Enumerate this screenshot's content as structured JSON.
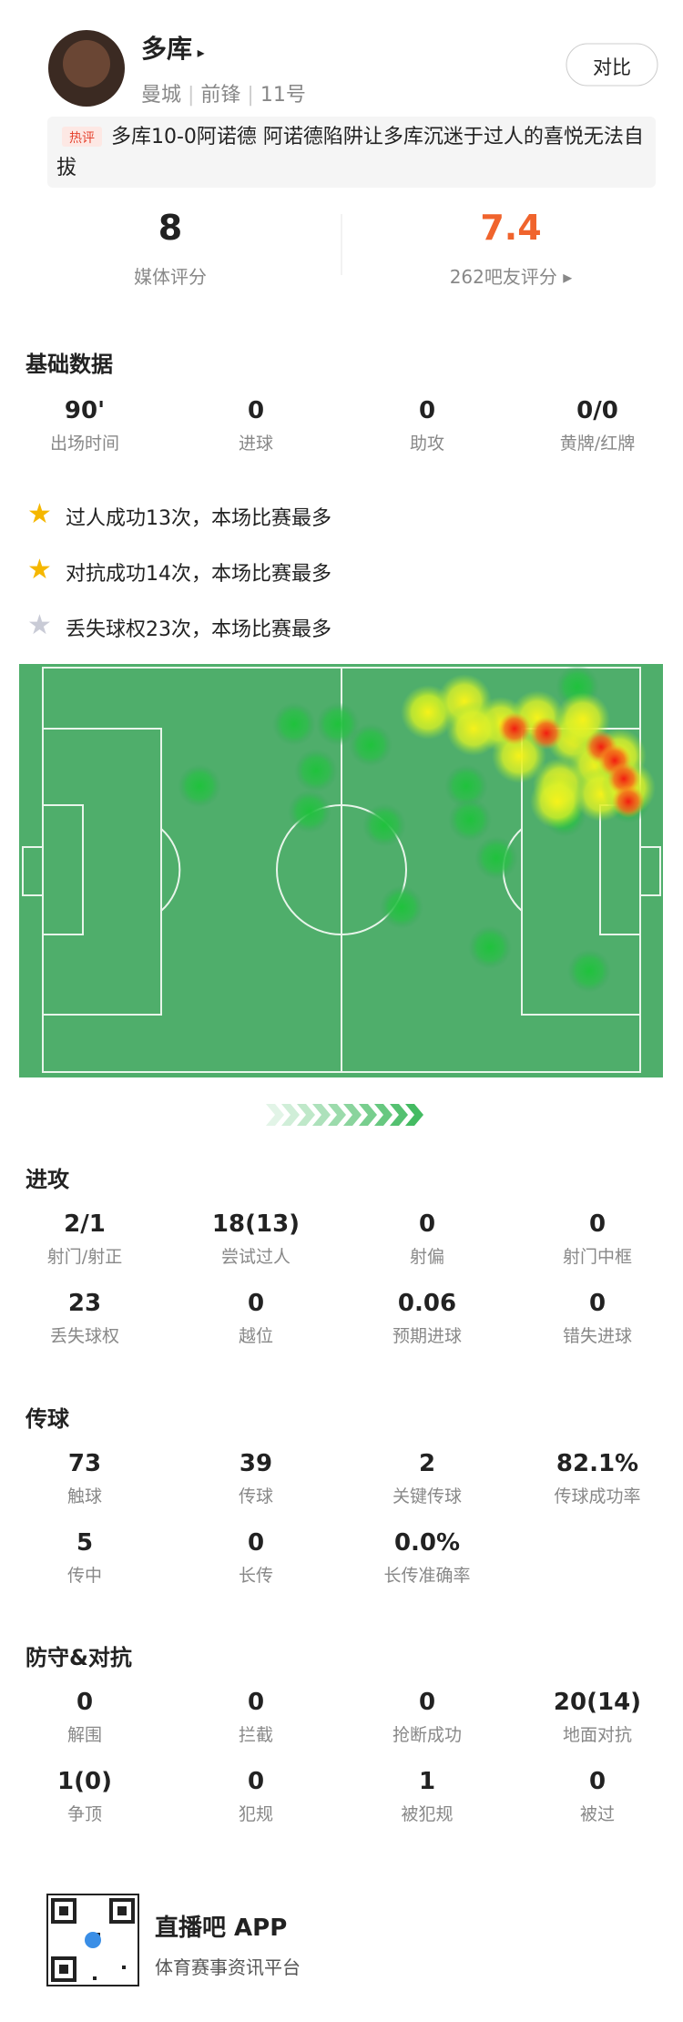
{
  "header": {
    "name": "多库",
    "team": "曼城",
    "position": "前锋",
    "number": "11号",
    "compare_button": "对比"
  },
  "hot_comment": {
    "tag": "热评",
    "text": "多库10-0阿诺德 阿诺德陷阱让多库沉迷于过人的喜悦无法自拔"
  },
  "ratings": {
    "media_score": "8",
    "media_label": "媒体评分",
    "fan_score": "7.4",
    "fan_label": "262吧友评分"
  },
  "basic": {
    "title": "基础数据",
    "stats": [
      {
        "value": "90'",
        "label": "出场时间"
      },
      {
        "value": "0",
        "label": "进球"
      },
      {
        "value": "0",
        "label": "助攻"
      },
      {
        "value": "0/0",
        "label": "黄牌/红牌"
      }
    ]
  },
  "highlights": [
    "过人成功13次，本场比赛最多",
    "对抗成功14次，本场比赛最多",
    "丢失球权23次，本场比赛最多"
  ],
  "attack": {
    "title": "进攻",
    "stats": [
      {
        "value": "2/1",
        "label": "射门/射正"
      },
      {
        "value": "18(13)",
        "label": "尝试过人"
      },
      {
        "value": "0",
        "label": "射偏"
      },
      {
        "value": "0",
        "label": "射门中框"
      },
      {
        "value": "23",
        "label": "丢失球权"
      },
      {
        "value": "0",
        "label": "越位"
      },
      {
        "value": "0.06",
        "label": "预期进球"
      },
      {
        "value": "0",
        "label": "错失进球"
      }
    ]
  },
  "passing": {
    "title": "传球",
    "stats": [
      {
        "value": "73",
        "label": "触球"
      },
      {
        "value": "39",
        "label": "传球"
      },
      {
        "value": "2",
        "label": "关键传球"
      },
      {
        "value": "82.1%",
        "label": "传球成功率"
      },
      {
        "value": "5",
        "label": "传中"
      },
      {
        "value": "0",
        "label": "长传"
      },
      {
        "value": "0.0%",
        "label": "长传准确率"
      }
    ]
  },
  "defense": {
    "title": "防守&对抗",
    "stats": [
      {
        "value": "0",
        "label": "解围"
      },
      {
        "value": "0",
        "label": "拦截"
      },
      {
        "value": "0",
        "label": "抢断成功"
      },
      {
        "value": "20(14)",
        "label": "地面对抗"
      },
      {
        "value": "1(0)",
        "label": "争顶"
      },
      {
        "value": "0",
        "label": "犯规"
      },
      {
        "value": "1",
        "label": "被犯规"
      },
      {
        "value": "0",
        "label": "被过"
      }
    ]
  },
  "footer": {
    "app_name": "直播吧 APP",
    "slogan": "体育赛事资讯平台"
  }
}
